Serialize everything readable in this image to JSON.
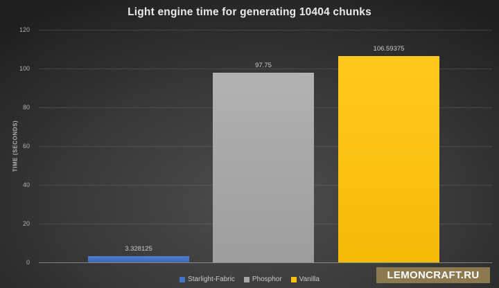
{
  "watermark": {
    "text": "LEMONCRAFT.RU",
    "bg_color": "#8d7950",
    "text_color": "#ffffff"
  },
  "chart_data": {
    "type": "bar",
    "title": "Light engine time for generating 10404 chunks",
    "xlabel": "",
    "ylabel": "TIME (SECONDS)",
    "categories": [
      "Starlight-Fabric",
      "Phosphor",
      "Vanilla"
    ],
    "values": [
      3.328125,
      97.75,
      106.59375
    ],
    "value_labels": [
      "3.328125",
      "97.75",
      "106.59375"
    ],
    "bar_colors": [
      "#4472c4",
      "#a6a6a6",
      "#fdc112"
    ],
    "bar_gradients": [
      [
        "#4f7dd1",
        "#3b67b6"
      ],
      [
        "#b2b2b2",
        "#9d9d9d"
      ],
      [
        "#ffc91e",
        "#f6ba08"
      ]
    ],
    "ylim": [
      0,
      120
    ],
    "yticks": [
      0,
      20,
      40,
      60,
      80,
      100,
      120
    ],
    "grid": true,
    "legend_position": "bottom",
    "legend": [
      "Starlight-Fabric",
      "Phosphor",
      "Vanilla"
    ],
    "background": "dark-gradient"
  }
}
